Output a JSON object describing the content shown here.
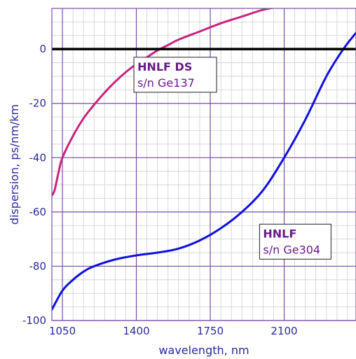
{
  "chart_data": {
    "type": "line",
    "title": "",
    "xlabel": "wavelength, nm",
    "ylabel": "dispersion, ps/nm/km",
    "xlim": [
      1000,
      2440
    ],
    "ylim": [
      -100,
      15
    ],
    "x_ticks": [
      1050,
      1400,
      1750,
      2100
    ],
    "y_ticks": [
      -100,
      -80,
      -60,
      -40,
      -20,
      0
    ],
    "grid": true,
    "reference_line": {
      "y": 0,
      "color": "#000000"
    },
    "series": [
      {
        "name": "HNLF DS",
        "color": "#c8247f",
        "x": [
          1000,
          1013,
          1030,
          1050,
          1100,
          1150,
          1200,
          1250,
          1300,
          1350,
          1400,
          1450,
          1500,
          1550,
          1600,
          1700,
          1800,
          1900,
          2000,
          2070
        ],
        "y": [
          -54,
          -52,
          -46,
          -40,
          -32,
          -25.5,
          -20.5,
          -16,
          -12,
          -8.5,
          -5.5,
          -3,
          -0.5,
          1.5,
          3.5,
          6.5,
          9.5,
          12,
          14.5,
          15.5
        ]
      },
      {
        "name": "HNLF",
        "color": "#1010e0",
        "x": [
          1000,
          1050,
          1100,
          1150,
          1200,
          1300,
          1400,
          1500,
          1600,
          1700,
          1800,
          1900,
          2000,
          2100,
          2200,
          2300,
          2380,
          2440
        ],
        "y": [
          -96,
          -89,
          -85,
          -82,
          -80,
          -77.5,
          -76,
          -75,
          -73.5,
          -70.5,
          -66,
          -60,
          -52,
          -40,
          -26,
          -10,
          0,
          6
        ]
      }
    ],
    "annotations": [
      {
        "series": 0,
        "title": "HNLF DS",
        "subtitle": "s/n Ge137",
        "x": 1405,
        "y": -3,
        "color": "#6a1a8a"
      },
      {
        "series": 1,
        "title": "HNLF",
        "subtitle": "s/n Ge304",
        "x": 2000,
        "y": -64.5,
        "color": "#6a1a8a"
      }
    ]
  },
  "colors": {
    "grid_major": "#7a4fa8",
    "grid_minor": "#cfcfcf",
    "axis_text": "#2a2a9a",
    "zero_line": "#000000"
  }
}
